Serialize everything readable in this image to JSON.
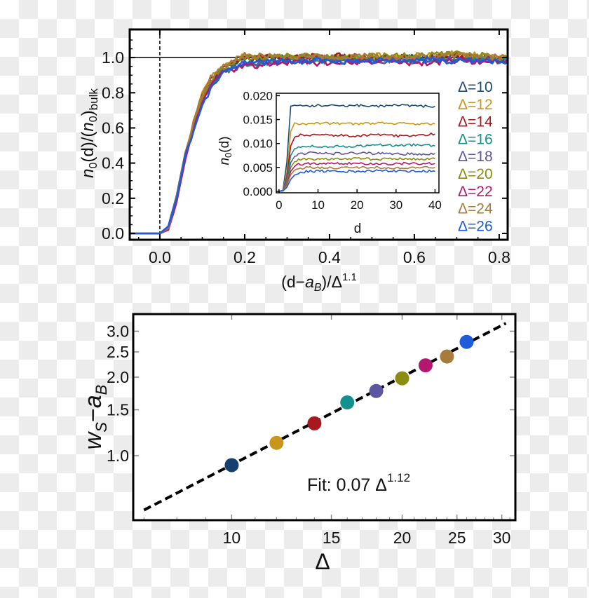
{
  "chart_data": [
    {
      "type": "line",
      "xlabel": "(d−a_B)/Δ^1.1",
      "ylabel": "n_0(d)/(n_0)_bulk",
      "xlim": [
        -0.071,
        0.82
      ],
      "ylim": [
        -0.036,
        1.16
      ],
      "xticks": [
        "0.0",
        "0.2",
        "0.4",
        "0.6",
        "0.8"
      ],
      "xtick_values": [
        0,
        0.2,
        0.4,
        0.6,
        0.8
      ],
      "yticks": [
        "0.0",
        "0.2",
        "0.4",
        "0.6",
        "0.8",
        "1.0"
      ],
      "ytick_values": [
        0,
        0.2,
        0.4,
        0.6,
        0.8,
        1.0
      ],
      "reference_lines": {
        "vertical_dashed_x": 0,
        "horizontal_y": 1.0
      },
      "legend_placement": "right",
      "x": [
        -0.07,
        0,
        0.02,
        0.04,
        0.06,
        0.08,
        0.1,
        0.12,
        0.15,
        0.2,
        0.3,
        0.4,
        0.5,
        0.6,
        0.7,
        0.82
      ],
      "series": [
        {
          "name": "Δ=10",
          "color": "#1b4a7a",
          "values": [
            0,
            0,
            0.04,
            0.22,
            0.45,
            0.63,
            0.77,
            0.87,
            0.94,
            0.99,
            1.0,
            1.0,
            0.99,
            1.0,
            1.0,
            0.99
          ]
        },
        {
          "name": "Δ=12",
          "color": "#c9961c",
          "values": [
            0,
            0,
            0.03,
            0.21,
            0.45,
            0.64,
            0.79,
            0.88,
            0.96,
            1.01,
            1.0,
            1.0,
            1.01,
            1.01,
            1.02,
            1.0
          ]
        },
        {
          "name": "Δ=14",
          "color": "#a8191e",
          "values": [
            0,
            0,
            0.03,
            0.2,
            0.44,
            0.63,
            0.78,
            0.88,
            0.95,
            1.0,
            1.0,
            1.01,
            1.0,
            1.0,
            1.01,
            0.99
          ]
        },
        {
          "name": "Δ=16",
          "color": "#13918c",
          "values": [
            0,
            0,
            0.03,
            0.2,
            0.43,
            0.61,
            0.75,
            0.85,
            0.92,
            0.96,
            0.98,
            0.98,
            0.99,
            0.98,
            0.99,
            0.98
          ]
        },
        {
          "name": "Δ=18",
          "color": "#5c55a2",
          "values": [
            0,
            0,
            0.03,
            0.2,
            0.43,
            0.61,
            0.75,
            0.85,
            0.93,
            0.97,
            0.98,
            0.99,
            0.98,
            0.99,
            0.99,
            0.99
          ]
        },
        {
          "name": "Δ=20",
          "color": "#8b8c12",
          "values": [
            0,
            0,
            0.03,
            0.2,
            0.43,
            0.62,
            0.77,
            0.87,
            0.95,
            1.0,
            1.01,
            1.0,
            1.01,
            1.01,
            1.02,
            1.0
          ]
        },
        {
          "name": "Δ=22",
          "color": "#b3186f",
          "values": [
            0,
            0,
            0.02,
            0.18,
            0.42,
            0.6,
            0.74,
            0.84,
            0.92,
            0.95,
            0.97,
            0.97,
            0.98,
            0.97,
            0.98,
            0.98
          ]
        },
        {
          "name": "Δ=24",
          "color": "#a67c3d",
          "values": [
            0,
            0,
            0.03,
            0.21,
            0.45,
            0.64,
            0.79,
            0.89,
            0.96,
            1.01,
            1.01,
            1.0,
            1.01,
            1.0,
            1.01,
            1.0
          ]
        },
        {
          "name": "Δ=26",
          "color": "#1e5bd8",
          "values": [
            0,
            0,
            0.04,
            0.2,
            0.45,
            0.58,
            0.72,
            0.82,
            0.91,
            0.97,
            0.98,
            0.98,
            0.98,
            0.99,
            0.98,
            0.98
          ]
        }
      ],
      "inset": {
        "type": "line",
        "xlabel": "d",
        "ylabel": "n_0(d)",
        "xlim": [
          -0.7,
          41
        ],
        "ylim": [
          -0.0003,
          0.0205
        ],
        "xticks": [
          "0",
          "10",
          "20",
          "30",
          "40"
        ],
        "xtick_values": [
          0,
          10,
          20,
          30,
          40
        ],
        "yticks": [
          "0.000",
          "0.005",
          "0.010",
          "0.015",
          "0.020"
        ],
        "ytick_values": [
          0,
          0.005,
          0.01,
          0.015,
          0.02
        ],
        "x": [
          0,
          1,
          2,
          3,
          4,
          5,
          6,
          8,
          10,
          15,
          20,
          25,
          30,
          35,
          40
        ],
        "series_values": [
          [
            0,
            0.0002,
            0.006,
            0.0178,
            0.018,
            0.0178,
            0.0179,
            0.0178,
            0.018,
            0.0178,
            0.018,
            0.0177,
            0.018,
            0.0178,
            0.0178
          ],
          [
            0,
            0.0002,
            0.004,
            0.0125,
            0.0143,
            0.0142,
            0.0142,
            0.0141,
            0.0142,
            0.0142,
            0.0141,
            0.0143,
            0.0142,
            0.0141,
            0.0141
          ],
          [
            0,
            0.0002,
            0.003,
            0.0095,
            0.0113,
            0.0117,
            0.0118,
            0.0117,
            0.0117,
            0.0117,
            0.0116,
            0.0118,
            0.0116,
            0.0117,
            0.012
          ],
          [
            0,
            0.0002,
            0.0025,
            0.0075,
            0.0089,
            0.0093,
            0.0094,
            0.0094,
            0.0093,
            0.0094,
            0.0094,
            0.0097,
            0.0096,
            0.0097,
            0.0095
          ],
          [
            0,
            0.0001,
            0.002,
            0.006,
            0.0073,
            0.0078,
            0.0079,
            0.008,
            0.0079,
            0.0079,
            0.008,
            0.0079,
            0.0078,
            0.0078,
            0.0079
          ],
          [
            0,
            0.0001,
            0.0017,
            0.005,
            0.0062,
            0.0066,
            0.0067,
            0.0068,
            0.0067,
            0.0067,
            0.0069,
            0.0067,
            0.0068,
            0.0067,
            0.0068
          ],
          [
            0,
            0.0001,
            0.0014,
            0.0042,
            0.0052,
            0.0056,
            0.0057,
            0.0058,
            0.0057,
            0.0058,
            0.0058,
            0.0057,
            0.0058,
            0.0058,
            0.0058
          ],
          [
            0,
            0.0001,
            0.0012,
            0.0035,
            0.0044,
            0.0048,
            0.0049,
            0.005,
            0.005,
            0.0049,
            0.005,
            0.005,
            0.0049,
            0.005,
            0.005
          ],
          [
            0,
            0.0001,
            0.0008,
            0.0025,
            0.0034,
            0.0039,
            0.0041,
            0.0042,
            0.0042,
            0.0042,
            0.0042,
            0.0043,
            0.0042,
            0.0042,
            0.0042
          ]
        ]
      }
    },
    {
      "type": "scatter",
      "xlabel": "Δ",
      "ylabel": "w_S−a_B",
      "xscale": "log",
      "yscale": "log",
      "xlim": [
        6.7,
        31.7
      ],
      "ylim": [
        0.566,
        3.49
      ],
      "xticks": [
        "10",
        "15",
        "20",
        "25",
        "30"
      ],
      "xtick_values": [
        10,
        15,
        20,
        25,
        30
      ],
      "yticks": [
        "1.0",
        "1.5",
        "2.0",
        "2.5",
        "3.0"
      ],
      "ytick_values": [
        1.0,
        1.5,
        2.0,
        2.5,
        3.0
      ],
      "x": [
        10,
        12,
        14,
        16,
        18,
        20,
        22,
        24,
        26
      ],
      "values": [
        0.92,
        1.12,
        1.33,
        1.6,
        1.77,
        1.98,
        2.22,
        2.4,
        2.73
      ],
      "colors": [
        "#173f6e",
        "#c9961c",
        "#a8191e",
        "#13918c",
        "#5c55a2",
        "#8b8c12",
        "#b3186f",
        "#a67c3d",
        "#1e5bd8"
      ],
      "fit": {
        "coefficient": 0.07,
        "exponent": 1.12,
        "style": "dashed",
        "color": "#000000"
      },
      "annotation": {
        "prefix": "Fit: 0.07 Δ",
        "exponent": "1.12"
      }
    }
  ]
}
